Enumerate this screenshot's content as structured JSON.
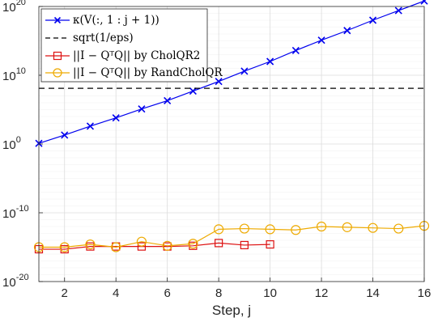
{
  "chart_data": {
    "type": "line",
    "xlabel": "Step, j",
    "ylabel": "",
    "xlim": [
      1,
      16
    ],
    "ylim_log10": [
      -20,
      20
    ],
    "y_scale": "log",
    "grid": true,
    "legend_placement": "top-left",
    "x_ticks": [
      2,
      4,
      6,
      8,
      10,
      12,
      14,
      16
    ],
    "x_tick_labels": [
      "2",
      "4",
      "6",
      "8",
      "10",
      "12",
      "14",
      "16"
    ],
    "y_ticks_log10": [
      -20,
      -10,
      0,
      10,
      20
    ],
    "y_tick_labels": [
      {
        "base": "10",
        "exp": "-20"
      },
      {
        "base": "10",
        "exp": "-10"
      },
      {
        "base": "10",
        "exp": "0"
      },
      {
        "base": "10",
        "exp": "10"
      },
      {
        "base": "10",
        "exp": "20"
      }
    ],
    "series": [
      {
        "name": "κ(V(:, 1 : j + 1))",
        "color": "#0000ee",
        "marker": "x",
        "line": "solid",
        "x": [
          1,
          2,
          3,
          4,
          5,
          6,
          7,
          8,
          9,
          10,
          11,
          12,
          13,
          14,
          15,
          16
        ],
        "y_log10": [
          0.1,
          1.3,
          2.6,
          3.8,
          5.1,
          6.3,
          7.7,
          9.1,
          10.6,
          12.0,
          13.6,
          15.1,
          16.5,
          18.0,
          19.4,
          20.8
        ]
      },
      {
        "name": "sqrt(1/eps)",
        "color": "#000000",
        "marker": "none",
        "line": "dashed",
        "x": [
          1,
          16
        ],
        "y_log10": [
          8.1,
          8.1
        ]
      },
      {
        "name": "||I − QᵀQ|| by CholQR2",
        "color": "#dd1111",
        "marker": "square",
        "line": "solid",
        "x": [
          1,
          2,
          3,
          4,
          5,
          6,
          7,
          8,
          9,
          10
        ],
        "y_log10": [
          -15.3,
          -15.3,
          -14.9,
          -14.9,
          -14.9,
          -14.9,
          -14.8,
          -14.4,
          -14.7,
          -14.6
        ]
      },
      {
        "name": "||I − QᵀQ|| by RandCholQR",
        "color": "#eeaa00",
        "marker": "circle",
        "line": "solid",
        "x": [
          1,
          2,
          3,
          4,
          5,
          6,
          7,
          8,
          9,
          10,
          11,
          12,
          13,
          14,
          15,
          16
        ],
        "y_log10": [
          -15.0,
          -15.0,
          -14.6,
          -15.0,
          -14.2,
          -14.8,
          -14.5,
          -12.4,
          -12.3,
          -12.4,
          -12.5,
          -12.0,
          -12.1,
          -12.2,
          -12.3,
          -11.9
        ]
      }
    ]
  }
}
